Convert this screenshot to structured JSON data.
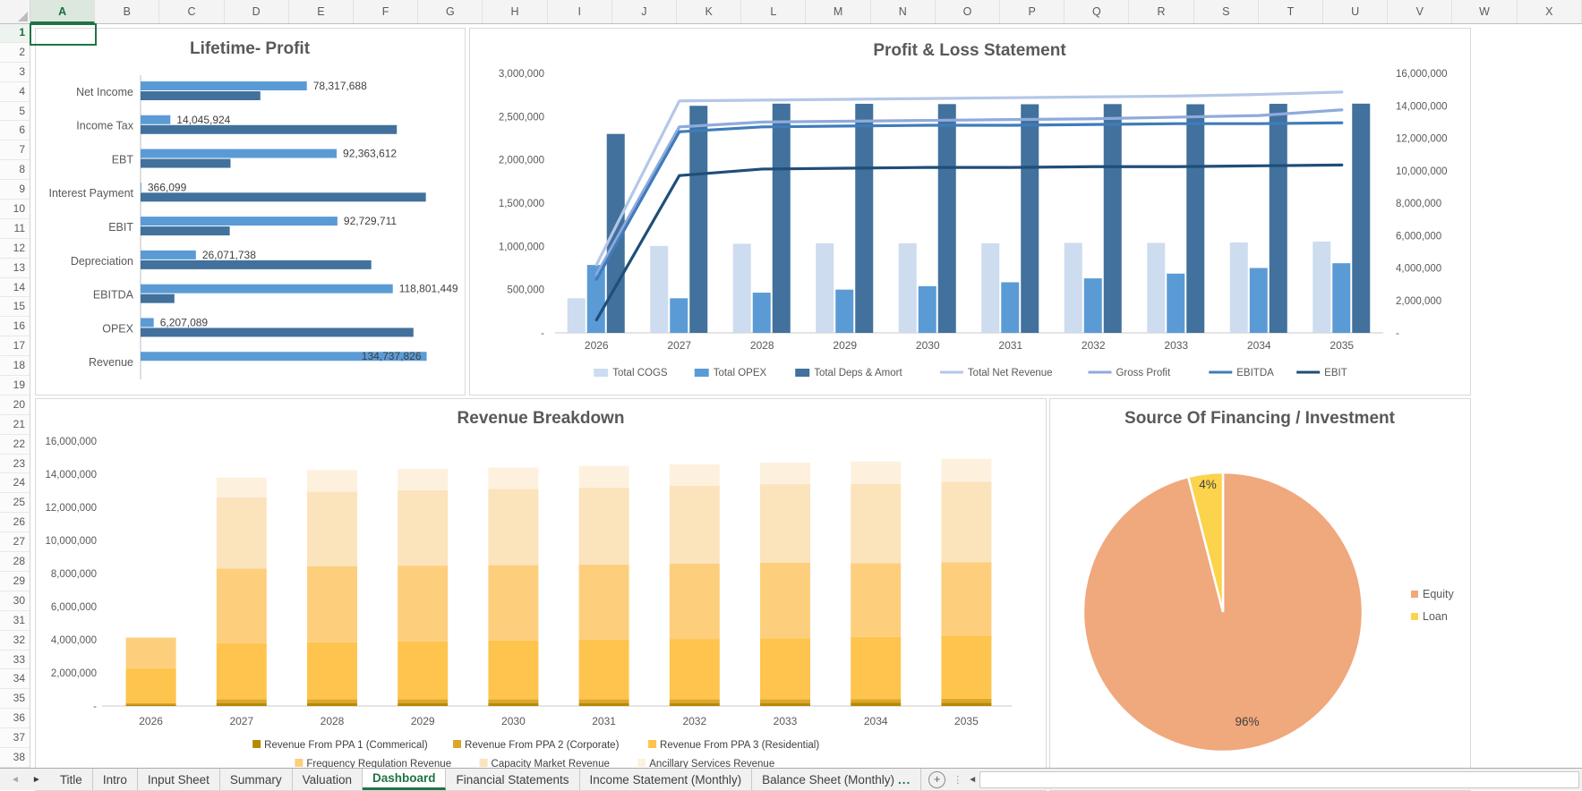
{
  "spreadsheet": {
    "column_headers": [
      "A",
      "B",
      "C",
      "D",
      "E",
      "F",
      "G",
      "H",
      "I",
      "J",
      "K",
      "L",
      "M",
      "N",
      "O",
      "P",
      "Q",
      "R",
      "S",
      "T",
      "U",
      "V",
      "W",
      "X"
    ],
    "selected_column": "A",
    "rows": {
      "first": 1,
      "last": 38
    },
    "selected_row": 1
  },
  "sheet_tabs": {
    "nav_left": "◄",
    "nav_right": "►",
    "tabs": [
      {
        "label": "Title"
      },
      {
        "label": "Intro"
      },
      {
        "label": "Input Sheet"
      },
      {
        "label": "Summary"
      },
      {
        "label": "Valuation"
      },
      {
        "label": "Dashboard",
        "active": true
      },
      {
        "label": "Financial Statements"
      },
      {
        "label": "Income Statement (Monthly)"
      },
      {
        "label": "Balance Sheet (Monthly)",
        "suffix": "..."
      }
    ],
    "add_sheet_label": "+",
    "scroll_left_arrow": "◄"
  },
  "chart_data": [
    {
      "id": "lifetime_profit",
      "type": "bar",
      "orientation": "horizontal",
      "title": "Lifetime- Profit",
      "categories": [
        "Net Income",
        "Income Tax",
        "EBT",
        "Interest Payment",
        "EBIT",
        "Depreciation",
        "EBITDA",
        "OPEX",
        "Revenue"
      ],
      "values": [
        78317688,
        14045924,
        92363612,
        366099,
        92729711,
        26071738,
        118801449,
        6207089,
        134737826
      ],
      "value_labels": [
        "78,317,688",
        "14,045,924",
        "92,363,612",
        "366,099",
        "92,729,711",
        "26,071,738",
        "118,801,449",
        "6,207,089",
        "134,737,826"
      ],
      "remainder_values": [
        56420138,
        120691902,
        42374214,
        134371727,
        42008115,
        108666088,
        15936377,
        128530737,
        0
      ],
      "colors": {
        "value": "#5B9BD5",
        "remainder": "#41719C"
      },
      "xlim": [
        0,
        140000000
      ],
      "legend": "none"
    },
    {
      "id": "profit_loss",
      "type": "combo",
      "title": "Profit & Loss Statement",
      "categories": [
        "2026",
        "2027",
        "2028",
        "2029",
        "2030",
        "2031",
        "2032",
        "2033",
        "2034",
        "2035"
      ],
      "bar_series": [
        {
          "name": "Total COGS",
          "color": "#CDDCEF",
          "axis": "left",
          "values": [
            400000,
            1005000,
            1030000,
            1035000,
            1035000,
            1035000,
            1040000,
            1040000,
            1045000,
            1055000
          ]
        },
        {
          "name": "Total OPEX",
          "color": "#5B9BD5",
          "axis": "left",
          "values": [
            785000,
            400000,
            465000,
            500000,
            540000,
            585000,
            630000,
            685000,
            750000,
            805000
          ]
        },
        {
          "name": "Total Deps & Amort",
          "color": "#41719C",
          "axis": "left",
          "values": [
            2300000,
            2625000,
            2650000,
            2648000,
            2645000,
            2643000,
            2645000,
            2643000,
            2648000,
            2650000
          ]
        }
      ],
      "line_series": [
        {
          "name": "Total Net Revenue",
          "color": "#B4C7E7",
          "axis": "right",
          "values": [
            4200000,
            14300000,
            14350000,
            14400000,
            14450000,
            14500000,
            14550000,
            14600000,
            14700000,
            14850000
          ]
        },
        {
          "name": "Gross Profit",
          "color": "#8FAADC",
          "axis": "right",
          "values": [
            3600000,
            12700000,
            13000000,
            13050000,
            13100000,
            13150000,
            13200000,
            13300000,
            13400000,
            13750000
          ]
        },
        {
          "name": "EBITDA",
          "color": "#3F7CBA",
          "axis": "right",
          "values": [
            3300000,
            12400000,
            12700000,
            12750000,
            12800000,
            12800000,
            12850000,
            12900000,
            12900000,
            12950000
          ]
        },
        {
          "name": "EBIT",
          "color": "#1F4E79",
          "axis": "right",
          "values": [
            800000,
            9700000,
            10100000,
            10150000,
            10200000,
            10200000,
            10250000,
            10250000,
            10300000,
            10350000
          ]
        }
      ],
      "left_axis": {
        "min": 0,
        "max": 3000000,
        "step": 500000
      },
      "right_axis": {
        "min": 0,
        "max": 16000000,
        "step": 2000000
      },
      "legend_position": "bottom",
      "grid": false
    },
    {
      "id": "revenue_breakdown",
      "type": "bar",
      "subtype": "stacked",
      "title": "Revenue Breakdown",
      "categories": [
        "2026",
        "2027",
        "2028",
        "2029",
        "2030",
        "2031",
        "2032",
        "2033",
        "2034",
        "2035"
      ],
      "series": [
        {
          "name": "Revenue From PPA 1 (Commerical)",
          "color": "#B58A00",
          "legend_row": 1,
          "values": [
            80000,
            180000,
            180000,
            180000,
            180000,
            180000,
            180000,
            180000,
            190000,
            200000
          ]
        },
        {
          "name": "Revenue From PPA 2 (Corporate)",
          "color": "#DCA629",
          "legend_row": 1,
          "values": [
            100000,
            220000,
            220000,
            220000,
            220000,
            220000,
            220000,
            220000,
            230000,
            240000
          ]
        },
        {
          "name": "Revenue From PPA 3 (Residential)",
          "color": "#FEC44D",
          "legend_row": 1,
          "values": [
            2100000,
            3400000,
            3450000,
            3500000,
            3550000,
            3600000,
            3650000,
            3700000,
            3750000,
            3800000
          ]
        },
        {
          "name": "Frequency Regulation Revenue",
          "color": "#FDCF7D",
          "legend_row": 2,
          "values": [
            1850000,
            4500000,
            4600000,
            4580000,
            4560000,
            4550000,
            4550000,
            4550000,
            4450000,
            4450000
          ]
        },
        {
          "name": "Capacity Market Revenue",
          "color": "#FBE3BC",
          "legend_row": 2,
          "values": [
            0,
            4300000,
            4500000,
            4550000,
            4600000,
            4650000,
            4700000,
            4750000,
            4800000,
            4850000
          ]
        },
        {
          "name": "Ancillary Services Revenue",
          "color": "#FDF1DE",
          "legend_row": 2,
          "values": [
            0,
            1200000,
            1300000,
            1300000,
            1300000,
            1300000,
            1300000,
            1300000,
            1350000,
            1400000
          ]
        }
      ],
      "y_axis": {
        "min": 0,
        "max": 16000000,
        "step": 2000000
      },
      "legend_position": "bottom",
      "grid": false
    },
    {
      "id": "financing_pie",
      "type": "pie",
      "title": "Source Of Financing / Investment",
      "slices": [
        {
          "label": "Equity",
          "pct": 96,
          "pct_label": "96%",
          "color": "#F0A87D"
        },
        {
          "label": "Loan",
          "pct": 4,
          "pct_label": "4%",
          "color": "#FCD34D"
        }
      ],
      "legend_position": "right"
    }
  ],
  "style": {
    "title_color": "#595959",
    "axis_text_color": "#595959",
    "value_label_color": "#3F3F3F",
    "excel_green": "#217346"
  }
}
